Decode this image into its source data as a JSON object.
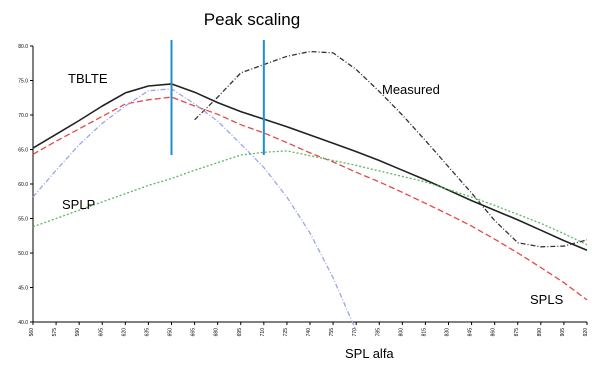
{
  "chart_data": {
    "type": "line",
    "title": "Peak scaling",
    "xlabel": "",
    "ylabel": "",
    "y_ticks": [
      "40.0",
      "45.0",
      "50.0",
      "55.0",
      "60.0",
      "65.0",
      "70.0",
      "75.0",
      "80.0"
    ],
    "x_ticks": [
      "560",
      "575",
      "590",
      "605",
      "620",
      "635",
      "650",
      "665",
      "680",
      "695",
      "710",
      "725",
      "740",
      "755",
      "770",
      "785",
      "800",
      "815",
      "830",
      "845",
      "860",
      "875",
      "890",
      "905",
      "920"
    ],
    "ylim": [
      40,
      80
    ],
    "grid": false,
    "marker_lines_x": [
      650,
      710
    ],
    "series": [
      {
        "name": "TBLTE",
        "color": "#222222",
        "style": "solid",
        "x": [
          560,
          575,
          590,
          605,
          620,
          635,
          650,
          665,
          680,
          695,
          710,
          725,
          740,
          755,
          770,
          785,
          800,
          815,
          830,
          845,
          860,
          875,
          890,
          905,
          920
        ],
        "y": [
          65.2,
          67.2,
          69.2,
          71.3,
          73.2,
          74.2,
          74.5,
          73.3,
          71.8,
          70.5,
          69.4,
          68.3,
          67.1,
          65.9,
          64.7,
          63.4,
          62.0,
          60.6,
          59.1,
          57.6,
          56.2,
          54.8,
          53.3,
          51.8,
          50.4
        ]
      },
      {
        "name": "Measured",
        "color": "#333333",
        "style": "dash-dot",
        "x": [
          665,
          680,
          695,
          710,
          725,
          740,
          755,
          770,
          785,
          800,
          815,
          830,
          845,
          860,
          875,
          890,
          905,
          920
        ],
        "y": [
          69.3,
          72.6,
          76.1,
          77.3,
          78.5,
          79.2,
          79.0,
          76.6,
          73.4,
          70.0,
          66.3,
          62.5,
          58.7,
          54.7,
          51.5,
          50.9,
          51.0,
          51.9
        ]
      },
      {
        "name": "",
        "color": "#e24a4a",
        "style": "dashed",
        "x": [
          560,
          575,
          590,
          605,
          620,
          635,
          650,
          665,
          680,
          695,
          710,
          725,
          740,
          755,
          770,
          785,
          800,
          815,
          830,
          845,
          860,
          875,
          890,
          905,
          920
        ],
        "y": [
          64.3,
          66.2,
          68.0,
          69.8,
          71.6,
          72.2,
          72.6,
          71.3,
          70.1,
          68.6,
          67.4,
          66.0,
          64.5,
          63.2,
          61.7,
          60.3,
          58.8,
          57.2,
          55.6,
          53.9,
          52.0,
          50.0,
          47.9,
          45.7,
          43.2
        ]
      },
      {
        "name": "SPL alfa",
        "color": "#9aa7e6",
        "style": "dash-dot",
        "x": [
          560,
          575,
          590,
          605,
          620,
          635,
          650,
          665,
          680,
          695,
          710,
          725,
          740,
          755,
          770
        ],
        "y": [
          58.1,
          62.0,
          65.7,
          68.8,
          71.3,
          73.5,
          73.8,
          71.6,
          69.1,
          65.8,
          62.4,
          58.1,
          52.9,
          46.4,
          38.7
        ]
      },
      {
        "name": "SPLP",
        "color": "#5cb85c",
        "style": "dotted",
        "x": [
          560,
          575,
          590,
          605,
          620,
          635,
          650,
          665,
          680,
          695,
          710,
          725,
          740,
          755,
          770,
          785,
          800,
          815,
          830,
          845,
          860,
          875,
          890,
          905,
          920
        ],
        "y": [
          53.8,
          55.0,
          56.2,
          57.4,
          58.6,
          59.8,
          60.8,
          62.0,
          63.1,
          64.2,
          64.6,
          64.8,
          64.1,
          63.4,
          62.7,
          61.9,
          61.1,
          60.3,
          59.2,
          58.1,
          56.9,
          55.6,
          54.3,
          52.8,
          51.2
        ]
      }
    ],
    "annotations": [
      {
        "text": "TBLTE",
        "series": "TBLTE"
      },
      {
        "text": "Measured",
        "series": "Measured"
      },
      {
        "text": "SPLP",
        "series": "SPLP"
      },
      {
        "text": "SPLS",
        "series": ""
      },
      {
        "text": "SPL alfa",
        "series": "SPL alfa"
      }
    ],
    "marker_color": "#1f8fc9"
  }
}
